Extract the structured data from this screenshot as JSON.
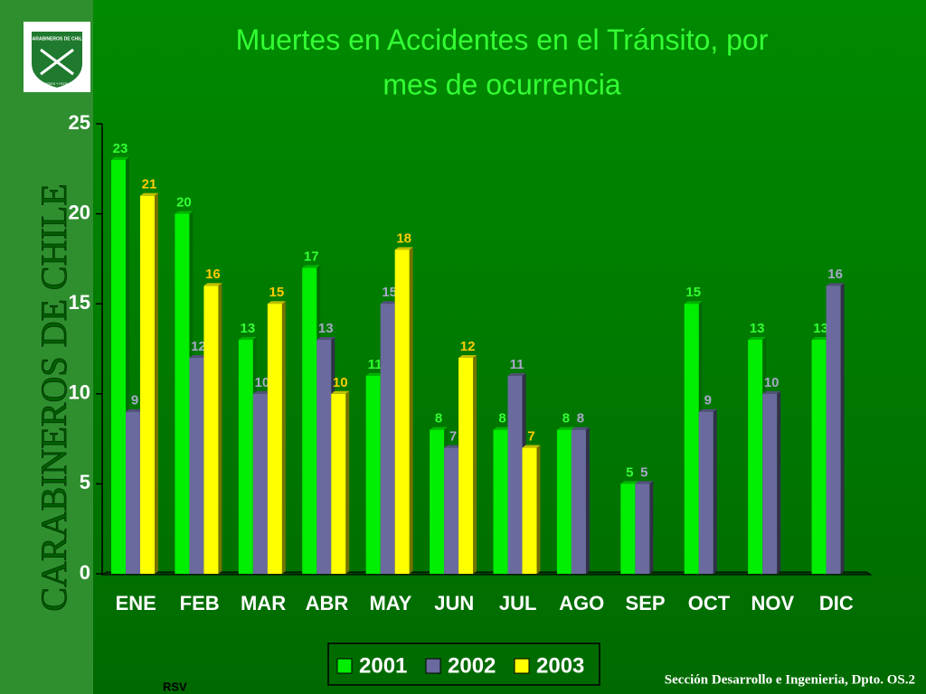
{
  "chart_data": {
    "type": "bar",
    "title_lines": [
      "Muertes en Accidentes en el Tránsito,",
      "por",
      "mes de ocurrencia"
    ],
    "categories": [
      "ENE",
      "FEB",
      "MAR",
      "ABR",
      "MAY",
      "JUN",
      "JUL",
      "AGO",
      "SEP",
      "OCT",
      "NOV",
      "DIC"
    ],
    "series": [
      {
        "name": "2001",
        "color": "#00ee00",
        "label_color": "#33ff33",
        "values": [
          23,
          20,
          13,
          17,
          11,
          8,
          8,
          8,
          5,
          15,
          13,
          13
        ]
      },
      {
        "name": "2002",
        "color": "#6a6a9e",
        "label_color": "#a8a8c8",
        "values": [
          9,
          12,
          10,
          13,
          15,
          7,
          11,
          8,
          5,
          9,
          10,
          16
        ]
      },
      {
        "name": "2003",
        "color": "#ffff00",
        "label_color": "#ffcc00",
        "values": [
          21,
          16,
          15,
          10,
          18,
          12,
          7,
          null,
          null,
          null,
          null,
          null
        ]
      }
    ],
    "ylim": [
      0,
      25
    ],
    "yticks": [
      0,
      5,
      10,
      15,
      20,
      25
    ],
    "grid": false
  },
  "slide": {
    "side_text": "CARABINEROS DE CHILE",
    "logo_text": "CARABINEROS DE CHILE",
    "logo_motto": "ORDEN Y PATRIA",
    "footer": "Sección Desarrollo e Ingenieria, Dpto. OS.2",
    "initials": "RSV"
  }
}
